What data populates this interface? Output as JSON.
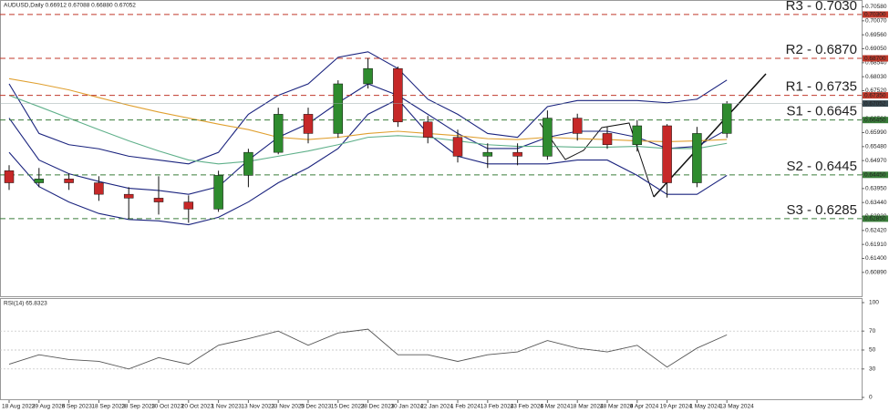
{
  "chart_data": [
    {
      "type": "candlestick",
      "title": "AUDUSD,Daily  0.66912 0.67088 0.66880 0.67052",
      "categories": [
        "18 Aug 2023",
        "29 Aug 2023",
        "6 Sep 2023",
        "18 Sep 2023",
        "28 Sep 2023",
        "10 Oct 2023",
        "20 Oct 2023",
        "1 Nov 2023",
        "13 Nov 2023",
        "23 Nov 2023",
        "5 Dec 2023",
        "15 Dec 2023",
        "28 Dec 2023",
        "10 Jan 2024",
        "22 Jan 2024",
        "1 Feb 2024",
        "13 Feb 2024",
        "23 Feb 2024",
        "6 Mar 2024",
        "18 Mar 2024",
        "28 Mar 2024",
        "9 Apr 2024",
        "19 Apr 2024",
        "1 May 2024",
        "13 May 2024"
      ],
      "open": [
        0.646,
        0.6416,
        0.643,
        0.6416,
        0.6374,
        0.636,
        0.6346,
        0.632,
        0.6443,
        0.6527,
        0.6666,
        0.6596,
        0.6777,
        0.6833,
        0.6638,
        0.6582,
        0.6513,
        0.6527,
        0.6513,
        0.6652,
        0.6596,
        0.6555,
        0.6624,
        0.6416,
        0.6596
      ],
      "high": [
        0.648,
        0.647,
        0.645,
        0.644,
        0.64,
        0.644,
        0.637,
        0.646,
        0.654,
        0.669,
        0.669,
        0.679,
        0.6871,
        0.684,
        0.666,
        0.661,
        0.656,
        0.656,
        0.668,
        0.6668,
        0.662,
        0.6645,
        0.663,
        0.662,
        0.6714
      ],
      "low": [
        0.639,
        0.64,
        0.639,
        0.635,
        0.6285,
        0.63,
        0.627,
        0.631,
        0.64,
        0.652,
        0.656,
        0.658,
        0.676,
        0.662,
        0.656,
        0.649,
        0.647,
        0.648,
        0.65,
        0.657,
        0.654,
        0.653,
        0.6362,
        0.64,
        0.658
      ],
      "close": [
        0.6416,
        0.643,
        0.6416,
        0.6374,
        0.636,
        0.6346,
        0.632,
        0.6443,
        0.6527,
        0.6666,
        0.6596,
        0.6777,
        0.6833,
        0.6638,
        0.6582,
        0.6513,
        0.6527,
        0.6513,
        0.6652,
        0.6596,
        0.6555,
        0.6624,
        0.6416,
        0.6596,
        0.6705
      ],
      "up_color": "#2e8b2e",
      "down_color": "#c62828",
      "overlays": [
        {
          "color": "#1a237e",
          "values": [
            0.6777,
            0.6596,
            0.6555,
            0.654,
            0.6513,
            0.6499,
            0.6485,
            0.6527,
            0.6666,
            0.6735,
            0.6777,
            0.6874,
            0.6894,
            0.6833,
            0.6721,
            0.6666,
            0.6596,
            0.6582,
            0.6694,
            0.6716,
            0.6716,
            0.6716,
            0.6708,
            0.6721,
            0.6791
          ]
        },
        {
          "color": "#1a237e",
          "values": [
            0.6652,
            0.6499,
            0.6449,
            0.6421,
            0.6396,
            0.6388,
            0.6374,
            0.6402,
            0.6499,
            0.6582,
            0.6632,
            0.6708,
            0.6777,
            0.6735,
            0.6666,
            0.6596,
            0.6541,
            0.6541,
            0.6582,
            0.6604,
            0.6604,
            0.6582,
            0.6541,
            0.6549,
            0.661
          ]
        },
        {
          "color": "#1a237e",
          "values": [
            0.6527,
            0.6402,
            0.6346,
            0.6304,
            0.6282,
            0.6277,
            0.6263,
            0.629,
            0.6346,
            0.6416,
            0.6471,
            0.6541,
            0.6666,
            0.6721,
            0.6596,
            0.6513,
            0.6485,
            0.6485,
            0.6485,
            0.6499,
            0.6499,
            0.6443,
            0.6374,
            0.6374,
            0.6443
          ]
        },
        {
          "color": "#e0a030",
          "values": [
            0.6796,
            0.6777,
            0.6755,
            0.6727,
            0.6699,
            0.6674,
            0.6652,
            0.663,
            0.661,
            0.6582,
            0.6574,
            0.6582,
            0.6596,
            0.6604,
            0.6596,
            0.6588,
            0.6577,
            0.6574,
            0.6582,
            0.6577,
            0.6574,
            0.6569,
            0.6566,
            0.6569,
            0.6574
          ]
        },
        {
          "color": "#5fb08a",
          "values": [
            0.6735,
            0.6694,
            0.6652,
            0.661,
            0.6569,
            0.6532,
            0.6499,
            0.6485,
            0.6494,
            0.6513,
            0.6532,
            0.6555,
            0.6582,
            0.6588,
            0.6582,
            0.6569,
            0.6555,
            0.6549,
            0.6549,
            0.6546,
            0.6546,
            0.6549,
            0.6541,
            0.6541,
            0.656
          ]
        }
      ],
      "levels": [
        {
          "label": "R3 - 0.7030",
          "value": 0.703,
          "tag": "0.70300",
          "color": "#c0392b",
          "text_color": "#8b1a1a"
        },
        {
          "label": "R2 - 0.6870",
          "value": 0.687,
          "tag": "0.68700",
          "color": "#c0392b",
          "text_color": "#8b1a1a"
        },
        {
          "label": "R1 - 0.6735",
          "value": 0.6735,
          "tag": "0.67350",
          "color": "#c0392b",
          "text_color": "#8b1a1a"
        },
        {
          "label": "S1 - 0.6645",
          "value": 0.6645,
          "tag": "0.66450",
          "color": "#3a7d3a",
          "text_color": "#2e6b2e"
        },
        {
          "label": "S2 - 0.6445",
          "value": 0.6445,
          "tag": "0.64450",
          "color": "#3a7d3a",
          "text_color": "#2e6b2e"
        },
        {
          "label": "S3 - 0.6285",
          "value": 0.6285,
          "tag": "0.62850",
          "color": "#3a7d3a",
          "text_color": "#2e6b2e"
        }
      ],
      "last_price": {
        "value": 0.67052,
        "label": "0.67052"
      },
      "ylim": [
        0.6002,
        0.7083
      ],
      "yticks": [
        {
          "value": 0.7058,
          "label": "0.70580"
        },
        {
          "value": 0.7007,
          "label": "0.70070"
        },
        {
          "value": 0.6956,
          "label": "0.69560"
        },
        {
          "value": 0.6905,
          "label": "0.69050"
        },
        {
          "value": 0.6854,
          "label": "0.68540"
        },
        {
          "value": 0.6803,
          "label": "0.68030"
        },
        {
          "value": 0.6752,
          "label": "0.67520"
        },
        {
          "value": 0.6701,
          "label": "0.67010"
        },
        {
          "value": 0.665,
          "label": "0.66500"
        },
        {
          "value": 0.6599,
          "label": "0.65990"
        },
        {
          "value": 0.6548,
          "label": "0.65480"
        },
        {
          "value": 0.6497,
          "label": "0.64970"
        },
        {
          "value": 0.6446,
          "label": "0.64460"
        },
        {
          "value": 0.6395,
          "label": "0.63950"
        },
        {
          "value": 0.6344,
          "label": "0.63440"
        },
        {
          "value": 0.6293,
          "label": "0.62930"
        },
        {
          "value": 0.6242,
          "label": "0.62420"
        },
        {
          "value": 0.6191,
          "label": "0.61910"
        },
        {
          "value": 0.614,
          "label": "0.61400"
        },
        {
          "value": 0.6089,
          "label": "0.60890"
        }
      ]
    },
    {
      "type": "line",
      "title": "RSI(14) 65.8323",
      "values": [
        35,
        45,
        40,
        38,
        30,
        42,
        35,
        55,
        62,
        70,
        55,
        68,
        72,
        45,
        45,
        38,
        45,
        48,
        60,
        52,
        48,
        55,
        32,
        52,
        66
      ],
      "color": "#555555",
      "levels": [
        70,
        50,
        30
      ],
      "ylim": [
        0,
        100
      ],
      "yticks": [
        100,
        70,
        50,
        30,
        0
      ]
    }
  ]
}
